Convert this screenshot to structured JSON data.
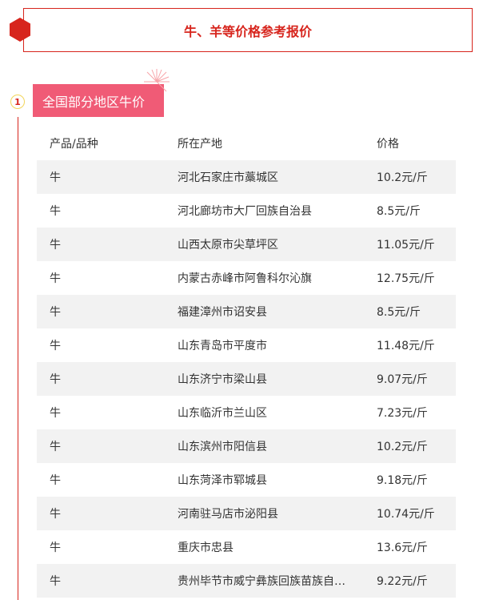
{
  "title": "牛、羊等价格参考报价",
  "section": {
    "number": "1",
    "label": "全国部分地区牛价"
  },
  "colors": {
    "accent": "#d7251d",
    "label_bg": "#f05b76",
    "row_alt": "#f2f2f2"
  },
  "table": {
    "headers": [
      "产品/品种",
      "所在产地",
      "价格"
    ],
    "rows": [
      [
        "牛",
        "河北石家庄市藁城区",
        "10.2元/斤"
      ],
      [
        "牛",
        "河北廊坊市大厂回族自治县",
        "8.5元/斤"
      ],
      [
        "牛",
        "山西太原市尖草坪区",
        "11.05元/斤"
      ],
      [
        "牛",
        "内蒙古赤峰市阿鲁科尔沁旗",
        "12.75元/斤"
      ],
      [
        "牛",
        "福建漳州市诏安县",
        "8.5元/斤"
      ],
      [
        "牛",
        "山东青岛市平度市",
        "11.48元/斤"
      ],
      [
        "牛",
        "山东济宁市梁山县",
        "9.07元/斤"
      ],
      [
        "牛",
        "山东临沂市兰山区",
        "7.23元/斤"
      ],
      [
        "牛",
        "山东滨州市阳信县",
        "10.2元/斤"
      ],
      [
        "牛",
        "山东菏泽市郓城县",
        "9.18元/斤"
      ],
      [
        "牛",
        "河南驻马店市泌阳县",
        "10.74元/斤"
      ],
      [
        "牛",
        "重庆市忠县",
        "13.6元/斤"
      ],
      [
        "牛",
        "贵州毕节市威宁彝族回族苗族自…",
        "9.22元/斤"
      ]
    ]
  }
}
